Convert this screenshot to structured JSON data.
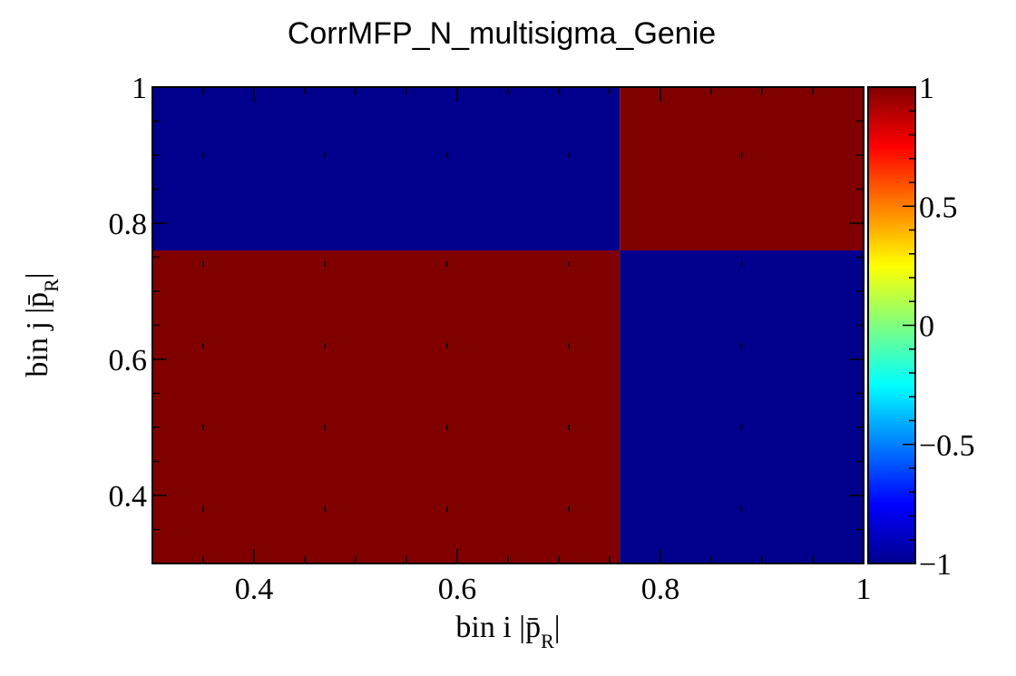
{
  "chart_data": {
    "type": "heatmap",
    "title": "CorrMFP_N_multisigma_Genie",
    "xlabel": "bin i |p̄",
    "xlabel_sub": "R",
    "xlabel_end": "|",
    "ylabel": "bin j |p̄",
    "ylabel_sub": "R",
    "ylabel_end": "|",
    "xlim": [
      0.3,
      1.0
    ],
    "ylim": [
      0.3,
      1.0
    ],
    "x_edges": [
      0.3,
      0.76,
      1.0
    ],
    "y_edges": [
      0.3,
      0.76,
      1.0
    ],
    "cells": [
      {
        "x_bin": 0,
        "y_bin": 0,
        "value": 1
      },
      {
        "x_bin": 1,
        "y_bin": 0,
        "value": -1
      },
      {
        "x_bin": 0,
        "y_bin": 1,
        "value": -1
      },
      {
        "x_bin": 1,
        "y_bin": 1,
        "value": 1
      }
    ],
    "x_ticks": [
      {
        "value": 0.4,
        "label": "0.4"
      },
      {
        "value": 0.6,
        "label": "0.6"
      },
      {
        "value": 0.8,
        "label": "0.8"
      },
      {
        "value": 1.0,
        "label": "1"
      }
    ],
    "y_ticks": [
      {
        "value": 0.4,
        "label": "0.4"
      },
      {
        "value": 0.6,
        "label": "0.6"
      },
      {
        "value": 0.8,
        "label": "0.8"
      },
      {
        "value": 1.0,
        "label": "1"
      }
    ],
    "colorbar": {
      "range": [
        -1,
        1
      ],
      "ticks": [
        {
          "value": 1,
          "label": "1"
        },
        {
          "value": 0.5,
          "label": "0.5"
        },
        {
          "value": 0,
          "label": "0"
        },
        {
          "value": -0.5,
          "label": "−0.5"
        },
        {
          "value": -1,
          "label": "−1"
        }
      ]
    },
    "colors": {
      "high": "#800000",
      "low": "#00008c"
    },
    "grid": false
  }
}
